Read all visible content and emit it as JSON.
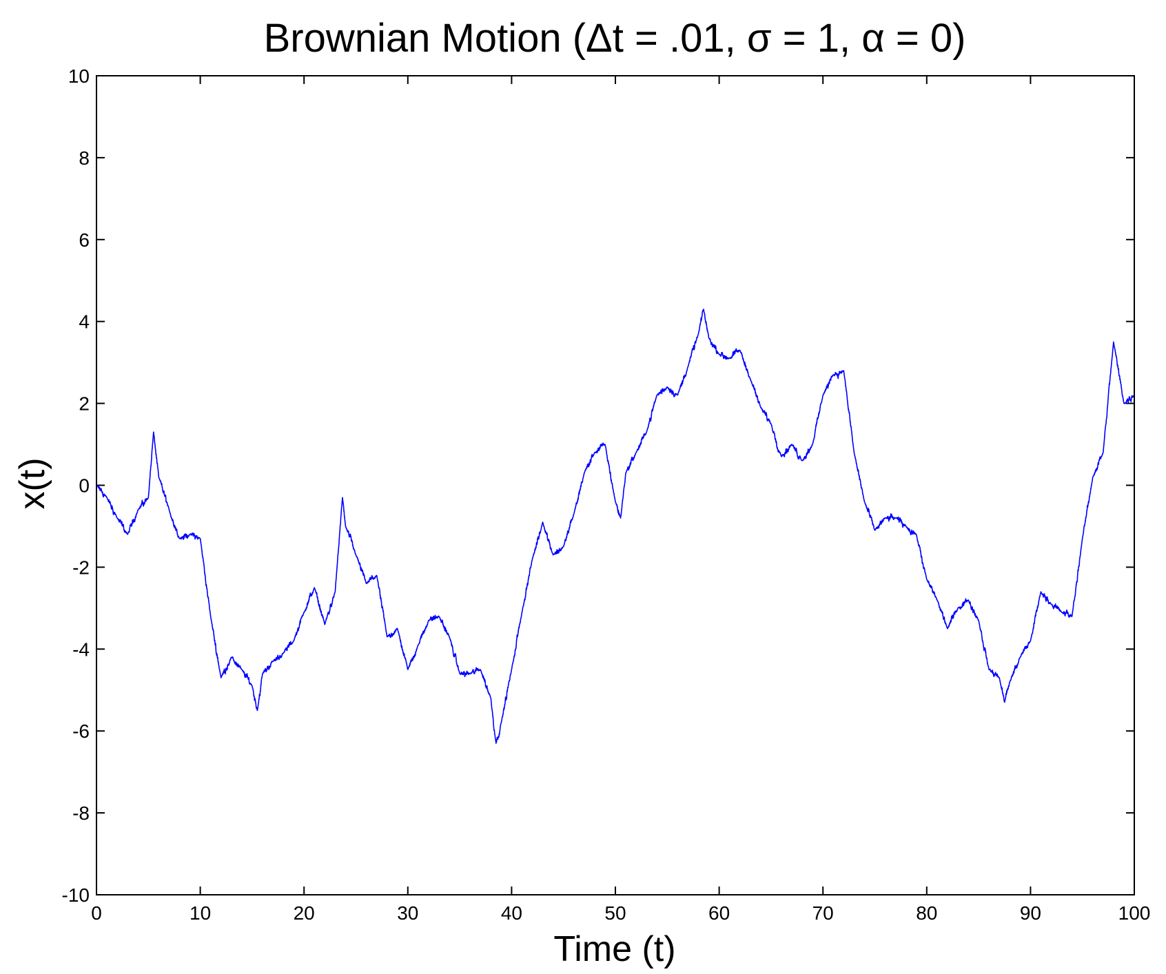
{
  "chart_data": {
    "type": "line",
    "title": "Brownian Motion (Δt = .01, σ = 1, α = 0)",
    "xlabel": "Time (t)",
    "ylabel": "x(t)",
    "xlim": [
      0,
      100
    ],
    "ylim": [
      -10,
      10
    ],
    "xticks": [
      0,
      10,
      20,
      30,
      40,
      50,
      60,
      70,
      80,
      90,
      100
    ],
    "yticks": [
      -10,
      -8,
      -6,
      -4,
      -2,
      0,
      2,
      4,
      6,
      8,
      10
    ],
    "xtick_labels": [
      "0",
      "10",
      "20",
      "30",
      "40",
      "50",
      "60",
      "70",
      "80",
      "90",
      "100"
    ],
    "ytick_labels": [
      "-10",
      "-8",
      "-6",
      "-4",
      "-2",
      "0",
      "2",
      "4",
      "6",
      "8",
      "10"
    ],
    "grid": false,
    "legend": "none",
    "series": [
      {
        "color": "#0000ff",
        "step": 0.01,
        "x": [
          0,
          1,
          2,
          3,
          4,
          5,
          5.5,
          6,
          7,
          8,
          9,
          10,
          11,
          12,
          13,
          14,
          15,
          15.5,
          16,
          17,
          18,
          19,
          20,
          21,
          22,
          23,
          23.7,
          24,
          25,
          26,
          27,
          28,
          29,
          30,
          31,
          32,
          33,
          34,
          35,
          36,
          37,
          38,
          38.5,
          39,
          40,
          41,
          42,
          43,
          44,
          45,
          46,
          47,
          48,
          49,
          50,
          50.5,
          51,
          52,
          53,
          54,
          55,
          56,
          57,
          58,
          58.5,
          59,
          60,
          61,
          62,
          63,
          64,
          65,
          66,
          67,
          68,
          69,
          70,
          71,
          72,
          73,
          74,
          75,
          76,
          77,
          78,
          79,
          80,
          81,
          82,
          83,
          84,
          85,
          86,
          87,
          87.5,
          88,
          89,
          90,
          91,
          92,
          93,
          94,
          95,
          96,
          97,
          98,
          99,
          100
        ],
        "y": [
          0,
          -0.3,
          -0.8,
          -1.2,
          -0.6,
          -0.3,
          1.3,
          0.2,
          -0.6,
          -1.3,
          -1.2,
          -1.3,
          -3.2,
          -4.7,
          -4.2,
          -4.5,
          -4.9,
          -5.5,
          -4.6,
          -4.3,
          -4.1,
          -3.8,
          -3.1,
          -2.5,
          -3.4,
          -2.6,
          -0.3,
          -1.0,
          -1.7,
          -2.4,
          -2.2,
          -3.7,
          -3.5,
          -4.5,
          -3.9,
          -3.3,
          -3.2,
          -3.7,
          -4.6,
          -4.6,
          -4.5,
          -5.2,
          -6.3,
          -5.8,
          -4.5,
          -3.1,
          -1.8,
          -0.9,
          -1.7,
          -1.5,
          -0.7,
          0.3,
          0.8,
          1.0,
          -0.4,
          -0.8,
          0.3,
          0.8,
          1.3,
          2.2,
          2.4,
          2.2,
          2.9,
          3.7,
          4.3,
          3.6,
          3.2,
          3.1,
          3.3,
          2.6,
          1.9,
          1.5,
          0.7,
          1.0,
          0.6,
          1.0,
          2.2,
          2.7,
          2.8,
          0.8,
          -0.4,
          -1.1,
          -0.8,
          -0.8,
          -1.0,
          -1.2,
          -2.3,
          -2.8,
          -3.5,
          -3.0,
          -2.8,
          -3.3,
          -4.5,
          -4.7,
          -5.3,
          -4.8,
          -4.2,
          -3.8,
          -2.6,
          -2.9,
          -3.1,
          -3.2,
          -1.3,
          0.2,
          0.8,
          3.5,
          2.0,
          2.2
        ]
      }
    ]
  }
}
